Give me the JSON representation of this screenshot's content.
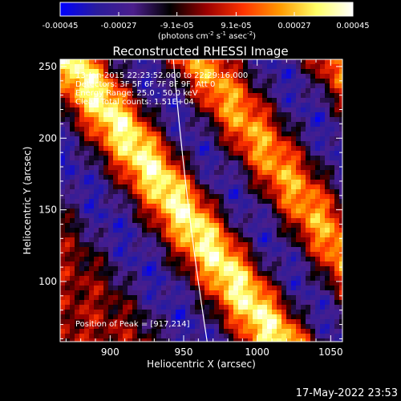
{
  "chart_data": {
    "type": "heatmap",
    "title": "Reconstructed RHESSI Image",
    "xlabel": "Heliocentric X (arcsec)",
    "ylabel": "Heliocentric Y (arcsec)",
    "xlim": [
      866,
      1058
    ],
    "ylim": [
      58,
      255
    ],
    "xticks": [
      900,
      950,
      1000,
      1050
    ],
    "yticks": [
      100,
      150,
      200,
      250
    ],
    "colorbar": {
      "range": [
        -0.00045,
        0.00045
      ],
      "tick_values": [
        -0.00045,
        -0.00027,
        -9.1e-05,
        9.1e-05,
        0.00027,
        0.00045
      ],
      "tick_labels": [
        "-0.00045",
        "-0.00027",
        "-9.1e-05",
        "9.1e-05",
        "0.00027",
        "0.00045"
      ],
      "unit_label": "(photons cm",
      "unit_exp1": "-2",
      "unit_mid": " s",
      "unit_exp2": "-1",
      "unit_mid2": " asec",
      "unit_exp3": "-2",
      "unit_end": ")",
      "colormap_stops": [
        "#0000ff",
        "#2a1c9c",
        "#4b1e8c",
        "#000000",
        "#9b0000",
        "#ff3300",
        "#ff9900",
        "#ffff66",
        "#ffffff"
      ]
    },
    "bands_description_series": [
      {
        "name": "",
        "values": [
          {
            "x": 900,
            "y": 225,
            "v": 0.0004
          },
          {
            "x": 920,
            "y": 200,
            "v": 0.00045
          },
          {
            "x": 950,
            "y": 170,
            "v": 0.00044
          },
          {
            "x": 975,
            "y": 150,
            "v": 0.00038
          },
          {
            "x": 1000,
            "y": 120,
            "v": 0.00035
          },
          {
            "x": 1020,
            "y": 95,
            "v": 0.0003
          }
        ]
      }
    ],
    "limb_x_at_ylim": [
      966,
      943
    ]
  },
  "annotations": {
    "time": "13-Jan-2015 22:23:52.000 to 22:29:16.000",
    "detectors": "Detectors: 3F 5F 6F 7F 8F 9F, Att 0",
    "energy": "Energy Range: 25.0 - 50.0 keV",
    "clean": "Clean    Total counts: 1.51E+04",
    "peak": "Position of Peak = [917,214]"
  },
  "footer": {
    "date": "17-May-2022 23:53"
  }
}
